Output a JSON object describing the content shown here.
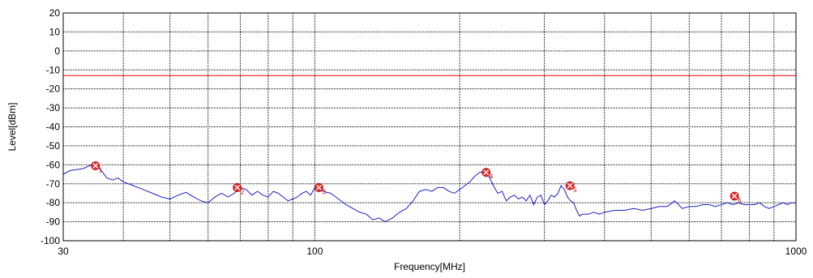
{
  "chart_data": {
    "type": "line",
    "title": "",
    "xlabel": "Frequency[MHz]",
    "ylabel": "Level[dBm]",
    "x_scale": "log",
    "xlim": [
      30,
      1000
    ],
    "ylim": [
      -100,
      20
    ],
    "grid": true,
    "x_ticks": [
      30,
      100,
      1000
    ],
    "x_tick_labels": [
      "30",
      "100",
      "1000"
    ],
    "x_minor_grid": [
      40,
      50,
      60,
      70,
      80,
      90,
      200,
      300,
      400,
      500,
      600,
      700,
      800,
      900
    ],
    "y_ticks": [
      20,
      10,
      0,
      -10,
      -20,
      -30,
      -40,
      -50,
      -60,
      -70,
      -80,
      -90,
      -100
    ],
    "y_tick_labels": [
      "20",
      "10",
      "0",
      "-10",
      "-20",
      "-30",
      "-40",
      "-50",
      "-60",
      "-70",
      "-80",
      "-90",
      "-100"
    ],
    "limit_line": {
      "level": -13,
      "color": "#ff0000"
    },
    "series": [
      {
        "color": "#2020c8",
        "x": [
          30,
          31,
          32,
          33,
          34,
          35,
          36,
          37,
          38,
          39,
          40,
          42,
          44,
          46,
          48,
          50,
          52,
          54,
          56,
          58,
          60,
          62,
          64,
          66,
          68,
          70,
          72,
          74,
          76,
          78,
          80,
          82,
          84,
          86,
          88,
          90,
          92,
          94,
          96,
          98,
          100,
          104,
          108,
          112,
          116,
          120,
          124,
          128,
          132,
          136,
          140,
          145,
          150,
          155,
          160,
          165,
          170,
          175,
          180,
          185,
          190,
          195,
          200,
          205,
          210,
          215,
          220,
          225,
          230,
          235,
          240,
          245,
          250,
          255,
          260,
          265,
          270,
          275,
          280,
          285,
          290,
          295,
          300,
          305,
          310,
          315,
          320,
          325,
          330,
          335,
          340,
          345,
          350,
          355,
          360,
          370,
          380,
          390,
          400,
          420,
          440,
          460,
          480,
          500,
          520,
          540,
          560,
          580,
          600,
          620,
          640,
          660,
          680,
          700,
          720,
          740,
          760,
          780,
          800,
          820,
          840,
          860,
          880,
          900,
          920,
          940,
          960,
          980,
          1000
        ],
        "y": [
          -65,
          -63,
          -62.5,
          -62,
          -60.5,
          -60,
          -63,
          -67,
          -68,
          -67,
          -69,
          -71,
          -73,
          -75,
          -77,
          -78,
          -76,
          -74.5,
          -77,
          -79,
          -80,
          -77,
          -75,
          -77,
          -75,
          -72,
          -73,
          -76,
          -74,
          -76,
          -77,
          -74,
          -75,
          -77,
          -79,
          -78,
          -77,
          -75,
          -74,
          -76,
          -72,
          -74,
          -75,
          -78,
          -81,
          -83,
          -85,
          -86,
          -89,
          -88,
          -90,
          -88,
          -85,
          -83,
          -79,
          -74,
          -73,
          -74,
          -72,
          -72,
          -74,
          -75,
          -73,
          -71,
          -69,
          -66,
          -64,
          -63.5,
          -66,
          -71,
          -75,
          -74,
          -79,
          -77,
          -76,
          -78,
          -77,
          -79,
          -76,
          -81,
          -77,
          -76,
          -81,
          -79,
          -76,
          -77,
          -75,
          -71,
          -73,
          -77,
          -79,
          -80,
          -84,
          -87,
          -86,
          -86,
          -85,
          -86,
          -85,
          -84,
          -84,
          -83,
          -84,
          -83,
          -82,
          -82,
          -79,
          -83,
          -82,
          -82,
          -81,
          -81,
          -82,
          -81,
          -80,
          -81,
          -80,
          -81,
          -81,
          -81,
          -80,
          -82,
          -83,
          -82,
          -81,
          -80,
          -81,
          -80,
          -80
        ]
      }
    ],
    "markers": [
      {
        "label": "1",
        "x": 35,
        "y": -60.5
      },
      {
        "label": "2",
        "x": 69,
        "y": -72
      },
      {
        "label": "3",
        "x": 102,
        "y": -72
      },
      {
        "label": "4",
        "x": 227,
        "y": -64
      },
      {
        "label": "5",
        "x": 339,
        "y": -71
      },
      {
        "label": "6",
        "x": 745,
        "y": -76.5
      }
    ]
  }
}
